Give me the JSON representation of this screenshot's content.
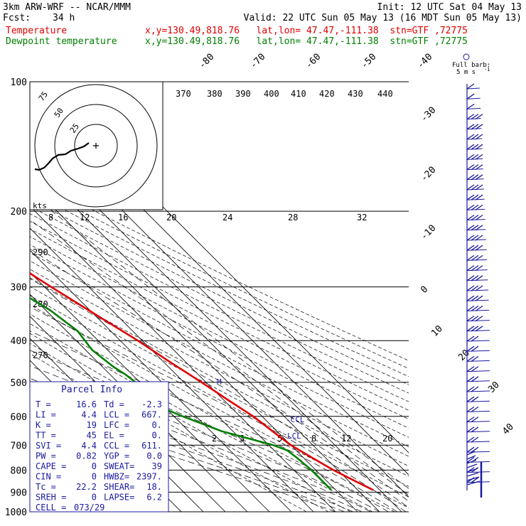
{
  "header": {
    "model": "3km ARW-WRF -- NCAR/MMM",
    "init": "Init: 12 UTC Sat 04 May 13",
    "fcst_label": "Fcst:",
    "fcst_value": "34 h",
    "valid": "Valid: 22 UTC Sun 05 May 13 (16 MDT Sun 05 May 13)",
    "temp_label": "Temperature",
    "temp_info": "x,y=130.49,818.76   lat,lon= 47.47,-111.38  stn=GTF ,72775",
    "dew_label": "Dewpoint temperature",
    "dew_info": "x,y=130.49,818.76   lat,lon= 47.47,-111.38  stn=GTF ,72775"
  },
  "barb_legend": {
    "line1": "Full barb:",
    "line2": "5 m s"
  },
  "hodograph": {
    "ring_labels": [
      "25",
      "50",
      "75"
    ],
    "units": "kts"
  },
  "parcel_info": {
    "title": "Parcel Info",
    "rows": [
      [
        "T  =",
        "16.6",
        "Td =",
        "-2.3"
      ],
      [
        "LI =",
        "4.4",
        "LCL =",
        "667."
      ],
      [
        "K  =",
        "19",
        "LFC =",
        "0."
      ],
      [
        "TT =",
        "45",
        "EL  =",
        "0."
      ],
      [
        "SVI =",
        "4.4",
        "CCL =",
        "611."
      ],
      [
        "PW =",
        "0.82",
        "YGP =",
        "0.0"
      ],
      [
        "CAPE =",
        "0",
        "SWEAT=",
        "39"
      ],
      [
        "CIN =",
        "0",
        "HWBZ=",
        "2397."
      ],
      [
        "Tc =",
        "22.2",
        "SHEAR=",
        "18."
      ],
      [
        "SREH =",
        "0",
        "LAPSE=",
        "6.2"
      ],
      [
        "CELL =",
        "073/29",
        "",
        ""
      ]
    ]
  },
  "markers": {
    "ccl": "-CCL",
    "lcl": "LCL",
    "m": "M"
  },
  "colors": {
    "temperature": "#e00000",
    "dewpoint": "#008000",
    "barbs": "#1a1aa0",
    "text": "#000000"
  },
  "chart_data": {
    "type": "line",
    "title": "",
    "xlabel": "",
    "ylabel": "",
    "y_scale": "log-pressure",
    "pressure_ticks": [
      100,
      200,
      300,
      400,
      500,
      600,
      700,
      800,
      900,
      1000
    ],
    "isotherm_labels": [
      "-80",
      "-70",
      "-60",
      "-50",
      "-40",
      "-30",
      "-20",
      "-10",
      "0",
      "10",
      "20",
      "30",
      "40"
    ],
    "theta_labels": [
      "370",
      "380",
      "390",
      "400",
      "410",
      "420",
      "430",
      "440"
    ],
    "lower_theta_labels": [
      "290",
      "280",
      "270"
    ],
    "mixing_ratio_labels_upper": [
      "8",
      "12",
      "16",
      "20",
      "24",
      "28",
      "32"
    ],
    "mixing_ratio_labels_lower": [
      "2",
      "3",
      "5",
      "8",
      "12",
      "20"
    ],
    "series": [
      {
        "name": "Temperature",
        "color": "#e00000",
        "points": [
          [
            890,
            17
          ],
          [
            850,
            13
          ],
          [
            800,
            8
          ],
          [
            750,
            4
          ],
          [
            700,
            0
          ],
          [
            650,
            -2
          ],
          [
            600,
            -4
          ],
          [
            550,
            -8
          ],
          [
            500,
            -12
          ],
          [
            450,
            -17
          ],
          [
            400,
            -22
          ],
          [
            350,
            -29
          ],
          [
            300,
            -37
          ],
          [
            270,
            -42
          ],
          [
            250,
            -46
          ],
          [
            230,
            -50
          ],
          [
            210,
            -54
          ],
          [
            190,
            -57
          ],
          [
            170,
            -58
          ],
          [
            150,
            -60
          ],
          [
            130,
            -61
          ],
          [
            115,
            -62
          ],
          [
            105,
            -63
          ]
        ]
      },
      {
        "name": "Dewpoint temperature",
        "color": "#008000",
        "points": [
          [
            890,
            -2
          ],
          [
            850,
            -2
          ],
          [
            800,
            -2
          ],
          [
            750,
            -3
          ],
          [
            720,
            -4
          ],
          [
            700,
            -8
          ],
          [
            650,
            -25
          ],
          [
            600,
            -36
          ],
          [
            580,
            -40
          ],
          [
            560,
            -42
          ],
          [
            520,
            -41
          ],
          [
            480,
            -43
          ],
          [
            460,
            -45
          ],
          [
            420,
            -47
          ],
          [
            380,
            -45
          ],
          [
            340,
            -48
          ],
          [
            300,
            -55
          ],
          [
            260,
            -61
          ],
          [
            230,
            -66
          ],
          [
            200,
            -71
          ],
          [
            170,
            -74
          ],
          [
            150,
            -74
          ],
          [
            120,
            -80
          ],
          [
            100,
            -84
          ]
        ]
      }
    ]
  }
}
